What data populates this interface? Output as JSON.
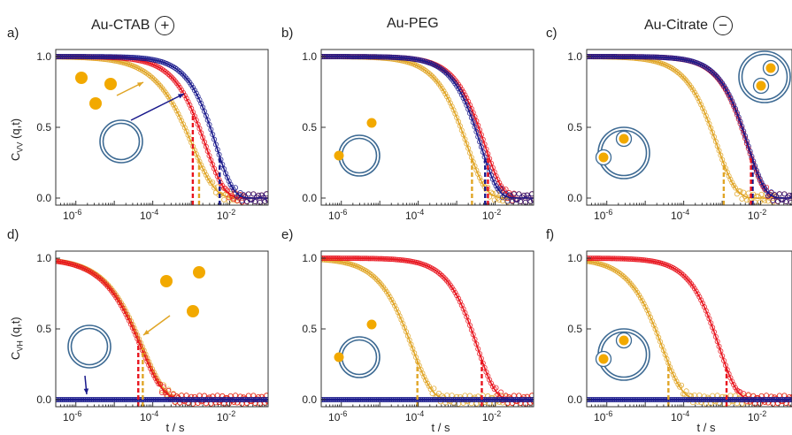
{
  "columns": [
    {
      "title": "Au-CTAB",
      "charge": "+"
    },
    {
      "title": "Au-PEG",
      "charge": ""
    },
    {
      "title": "Au-Citrate",
      "charge": "−"
    }
  ],
  "y_labels": {
    "top": {
      "main": "C",
      "sub": "VV",
      "rest": " (q,t)"
    },
    "bottom": {
      "main": "C",
      "sub": "VH",
      "rest": " (q,t)"
    }
  },
  "x_label": "t / s",
  "colors": {
    "blue": "#1a1a8c",
    "red": "#e8141e",
    "gold": "#e0a526",
    "particle": "#f2a900",
    "vesicle": "#3d6a93"
  },
  "chart_data": [
    {
      "id": "a",
      "label": "a)",
      "type": "line",
      "title": "",
      "xlabel": "",
      "ylabel": "C_VV (q,t)",
      "xscale": "log",
      "xlim": [
        3e-07,
        0.1
      ],
      "ylim": [
        -0.05,
        1.05
      ],
      "xticks": [
        "10-6",
        "10-4",
        "10-2"
      ],
      "yticks": [
        "0.0",
        "0.5",
        "1.0"
      ],
      "series": [
        {
          "color": "blue",
          "tau": 0.0045,
          "beta": 1.0,
          "marker_level": 0.32
        },
        {
          "color": "red",
          "tau": 0.0024,
          "beta": 0.9,
          "marker_level": 0.32
        },
        {
          "color": "gold",
          "tau": 0.0011,
          "beta": 0.75,
          "marker_level": 0.3
        }
      ],
      "markers": [
        {
          "color": "blue",
          "x": 0.0055
        },
        {
          "color": "red",
          "x": 0.0011
        },
        {
          "color": "gold",
          "x": 0.0016
        }
      ],
      "particles": "outside",
      "arrows": [
        {
          "color": "gold"
        },
        {
          "color": "blue"
        }
      ]
    },
    {
      "id": "b",
      "label": "b)",
      "type": "line",
      "title": "",
      "xlabel": "",
      "ylabel": "",
      "xscale": "log",
      "xlim": [
        3e-07,
        0.1
      ],
      "ylim": [
        -0.05,
        1.05
      ],
      "xticks": [
        "10-6",
        "10-4",
        "10-2"
      ],
      "yticks": [
        "0.0",
        "0.5",
        "1.0"
      ],
      "series": [
        {
          "color": "blue",
          "tau": 0.0043,
          "beta": 1.0
        },
        {
          "color": "red",
          "tau": 0.0055,
          "beta": 0.95
        },
        {
          "color": "gold",
          "tau": 0.0019,
          "beta": 0.9
        }
      ],
      "markers": [
        {
          "color": "blue",
          "x": 0.0055
        },
        {
          "color": "red",
          "x": 0.0065
        },
        {
          "color": "gold",
          "x": 0.0025
        }
      ],
      "particles": "attached"
    },
    {
      "id": "c",
      "label": "c)",
      "type": "line",
      "title": "",
      "xlabel": "",
      "ylabel": "",
      "xscale": "log",
      "xlim": [
        3e-07,
        0.1
      ],
      "ylim": [
        -0.05,
        1.05
      ],
      "xticks": [
        "10-6",
        "10-4",
        "10-2"
      ],
      "yticks": [
        "0.0",
        "0.5",
        "1.0"
      ],
      "series": [
        {
          "color": "blue",
          "tau": 0.0048,
          "beta": 1.0
        },
        {
          "color": "red",
          "tau": 0.0046,
          "beta": 1.0
        },
        {
          "color": "gold",
          "tau": 0.00075,
          "beta": 0.9
        }
      ],
      "markers": [
        {
          "color": "blue",
          "x": 0.0062
        },
        {
          "color": "red",
          "x": 0.0056
        },
        {
          "color": "gold",
          "x": 0.0011
        }
      ],
      "particles": "inside"
    },
    {
      "id": "d",
      "label": "d)",
      "type": "line",
      "title": "",
      "xlabel": "t / s",
      "ylabel": "C_VH (q,t)",
      "xscale": "log",
      "xlim": [
        3e-07,
        0.1
      ],
      "ylim": [
        -0.05,
        1.05
      ],
      "xticks": [
        "10-6",
        "10-4",
        "10-2"
      ],
      "yticks": [
        "0.0",
        "0.5",
        "1.0"
      ],
      "series": [
        {
          "color": "blue",
          "flat": true,
          "value": 0.0
        },
        {
          "color": "red",
          "tau": 5e-05,
          "beta": 0.75
        },
        {
          "color": "gold",
          "tau": 5.5e-05,
          "beta": 0.75
        }
      ],
      "markers": [
        {
          "color": "red",
          "x": 4.2e-05
        },
        {
          "color": "gold",
          "x": 5.5e-05
        }
      ],
      "particles": "outside",
      "arrows": [
        {
          "color": "gold"
        },
        {
          "color": "blue"
        }
      ]
    },
    {
      "id": "e",
      "label": "e)",
      "type": "line",
      "title": "",
      "xlabel": "t / s",
      "ylabel": "",
      "xscale": "log",
      "xlim": [
        3e-07,
        0.1
      ],
      "ylim": [
        -0.05,
        1.05
      ],
      "xticks": [
        "10-6",
        "10-4",
        "10-2"
      ],
      "yticks": [
        "0.0",
        "0.5",
        "1.0"
      ],
      "series": [
        {
          "color": "blue",
          "flat": true,
          "value": 0.0
        },
        {
          "color": "red",
          "tau": 0.0035,
          "beta": 0.95
        },
        {
          "color": "gold",
          "tau": 7e-05,
          "beta": 0.85
        }
      ],
      "markers": [
        {
          "color": "red",
          "x": 0.0045
        },
        {
          "color": "gold",
          "x": 9.5e-05
        }
      ],
      "particles": "attached"
    },
    {
      "id": "f",
      "label": "f)",
      "type": "line",
      "title": "",
      "xlabel": "t / s",
      "ylabel": "",
      "xscale": "log",
      "xlim": [
        3e-07,
        0.1
      ],
      "ylim": [
        -0.05,
        1.05
      ],
      "xticks": [
        "10-6",
        "10-4",
        "10-2"
      ],
      "yticks": [
        "0.0",
        "0.5",
        "1.0"
      ],
      "series": [
        {
          "color": "blue",
          "flat": true,
          "value": 0.0
        },
        {
          "color": "red",
          "tau": 0.00085,
          "beta": 0.95
        },
        {
          "color": "gold",
          "tau": 2.8e-05,
          "beta": 0.85
        }
      ],
      "markers": [
        {
          "color": "red",
          "x": 0.0013
        },
        {
          "color": "gold",
          "x": 4e-05
        }
      ],
      "particles": "inside"
    }
  ]
}
